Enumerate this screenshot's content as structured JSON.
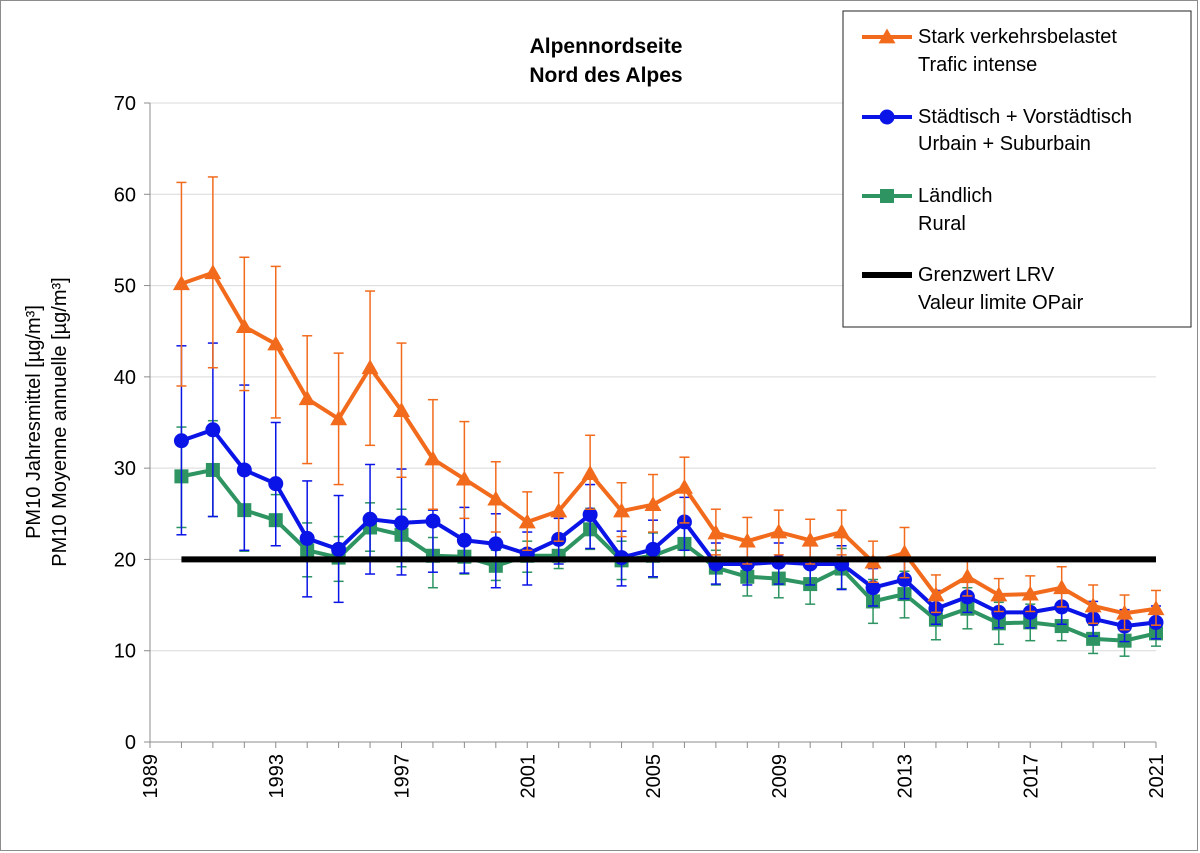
{
  "chart_data": {
    "type": "line",
    "title_line1": "Alpennordseite",
    "title_line2": "Nord des Alpes",
    "ylabel_line1": "PM10 Jahresmittel [µg/m³]",
    "ylabel_line2": "PM10 Moyenne annuelle [µg/m³]",
    "xlabel": "",
    "xlim": [
      1989,
      2021
    ],
    "xticks": [
      1989,
      1993,
      1997,
      2001,
      2005,
      2009,
      2013,
      2017,
      2021
    ],
    "ylim": [
      0,
      70
    ],
    "yticks": [
      0,
      10,
      20,
      30,
      40,
      50,
      60,
      70
    ],
    "grid": "horizontal",
    "legend_position": "top-right",
    "x": [
      1990,
      1991,
      1992,
      1993,
      1994,
      1995,
      1996,
      1997,
      1998,
      1999,
      2000,
      2001,
      2002,
      2003,
      2004,
      2005,
      2006,
      2007,
      2008,
      2009,
      2010,
      2011,
      2012,
      2013,
      2014,
      2015,
      2016,
      2017,
      2018,
      2019,
      2020,
      2021
    ],
    "series": [
      {
        "name_line1": "Stark verkehrsbelastet",
        "name_line2": "Trafic intense",
        "color": "#f26b1d",
        "marker": "triangle",
        "values": [
          50.2,
          51.4,
          45.5,
          43.6,
          37.6,
          35.4,
          41.0,
          36.3,
          31.0,
          28.8,
          26.6,
          24.1,
          25.3,
          29.4,
          25.3,
          26.0,
          27.9,
          22.9,
          22.0,
          23.0,
          22.1,
          23.0,
          19.7,
          20.7,
          16.1,
          18.1,
          16.1,
          16.2,
          16.9,
          14.9,
          14.1,
          14.6
        ],
        "err_low": [
          39.0,
          41.0,
          38.5,
          35.5,
          30.5,
          28.2,
          32.5,
          29.0,
          25.5,
          24.5,
          23.0,
          21.0,
          22.0,
          25.5,
          22.5,
          23.0,
          24.0,
          20.5,
          19.5,
          20.5,
          19.5,
          20.5,
          17.5,
          18.0,
          14.2,
          16.0,
          14.3,
          14.3,
          14.8,
          13.0,
          12.3,
          12.8
        ],
        "err_high": [
          61.3,
          61.9,
          53.1,
          52.1,
          44.5,
          42.6,
          49.4,
          43.7,
          37.5,
          35.1,
          30.7,
          27.4,
          29.5,
          33.6,
          28.4,
          29.3,
          31.2,
          25.5,
          24.6,
          25.4,
          24.4,
          25.4,
          22.0,
          23.5,
          18.3,
          20.2,
          17.9,
          18.2,
          19.2,
          17.2,
          16.1,
          16.6
        ]
      },
      {
        "name_line1": "Städtisch + Vorstädtisch",
        "name_line2": "Urbain + Suburbain",
        "color": "#0a14e6",
        "marker": "circle",
        "values": [
          33.0,
          34.2,
          29.8,
          28.3,
          22.3,
          21.1,
          24.4,
          24.0,
          24.2,
          22.1,
          21.7,
          20.6,
          22.2,
          24.9,
          20.2,
          21.1,
          24.1,
          19.5,
          19.5,
          19.7,
          19.5,
          19.5,
          16.9,
          17.8,
          14.6,
          15.9,
          14.2,
          14.2,
          14.8,
          13.5,
          12.7,
          13.1
        ],
        "err_low": [
          22.7,
          24.7,
          21.0,
          21.5,
          15.9,
          15.3,
          18.4,
          18.3,
          18.6,
          18.5,
          16.9,
          17.2,
          19.5,
          21.2,
          17.1,
          18.1,
          21.0,
          17.3,
          17.2,
          17.3,
          17.2,
          16.7,
          14.9,
          15.7,
          12.9,
          14.2,
          12.5,
          12.5,
          12.9,
          11.6,
          11.0,
          11.3
        ],
        "err_high": [
          43.4,
          43.7,
          39.1,
          35.0,
          28.6,
          27.0,
          30.4,
          29.9,
          25.4,
          25.7,
          25.0,
          23.0,
          24.5,
          28.2,
          23.1,
          24.3,
          26.8,
          21.8,
          21.5,
          21.8,
          21.5,
          21.5,
          19.0,
          20.0,
          16.6,
          17.7,
          16.0,
          16.0,
          16.5,
          15.4,
          14.5,
          14.9
        ]
      },
      {
        "name_line1": "Ländlich",
        "name_line2": "Rural",
        "color": "#2e9462",
        "marker": "square",
        "values": [
          29.1,
          29.8,
          25.4,
          24.3,
          21.0,
          20.2,
          23.5,
          22.7,
          20.4,
          20.3,
          19.3,
          20.4,
          20.4,
          23.3,
          19.9,
          20.4,
          21.7,
          19.1,
          18.1,
          17.9,
          17.3,
          19.0,
          15.4,
          16.2,
          13.4,
          14.6,
          13.0,
          13.1,
          12.7,
          11.3,
          11.1,
          11.9
        ],
        "err_low": [
          23.5,
          24.7,
          20.9,
          21.5,
          18.1,
          17.6,
          20.9,
          19.2,
          16.9,
          18.4,
          17.7,
          18.6,
          19.0,
          21.1,
          17.8,
          18.0,
          19.8,
          17.2,
          16.0,
          15.8,
          15.1,
          16.8,
          13.0,
          13.6,
          11.2,
          12.4,
          10.7,
          11.1,
          11.1,
          9.7,
          9.4,
          10.5
        ],
        "err_high": [
          34.5,
          35.2,
          29.9,
          27.1,
          24.0,
          22.5,
          26.2,
          25.5,
          22.4,
          22.2,
          21.0,
          22.0,
          21.9,
          25.6,
          22.0,
          22.9,
          23.6,
          21.0,
          20.2,
          20.0,
          19.5,
          21.2,
          17.8,
          18.7,
          15.6,
          16.9,
          15.3,
          15.1,
          14.4,
          12.8,
          12.8,
          13.3
        ]
      },
      {
        "name_line1": "Grenzwert LRV",
        "name_line2": "Valeur limite OPair",
        "color": "#000000",
        "marker": "none",
        "x_range": [
          1990,
          2021
        ],
        "constant_value": 20
      }
    ]
  }
}
